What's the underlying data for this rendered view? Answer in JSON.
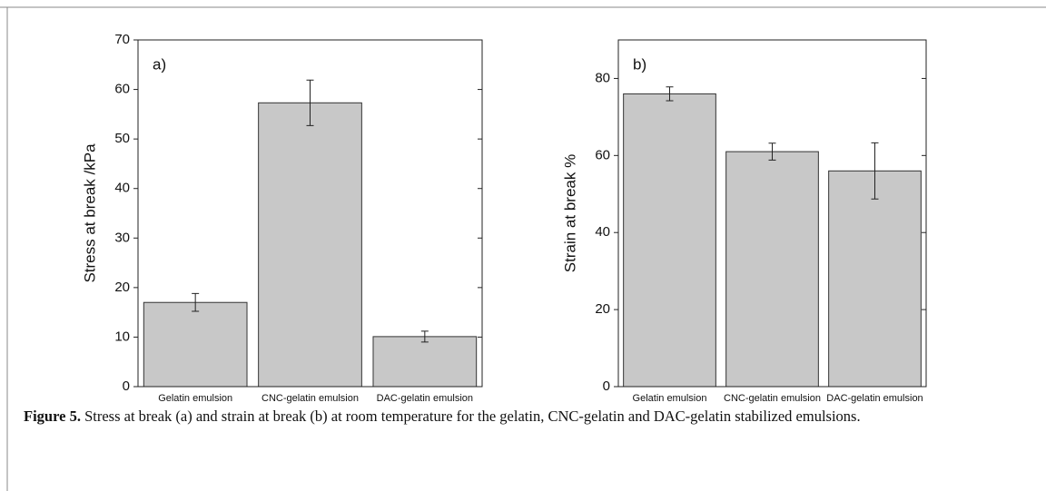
{
  "chart_data": [
    {
      "type": "bar",
      "panel_label": "a)",
      "ylabel": "Stress at break /kPa",
      "categories": [
        "Gelatin emulsion",
        "CNC-gelatin emulsion",
        "DAC-gelatin emulsion"
      ],
      "values": [
        17,
        57.3,
        10.1
      ],
      "errors": [
        1.8,
        4.6,
        1.1
      ],
      "color": "#c8c8c8",
      "ylim": [
        0,
        70
      ],
      "yticks": [
        0,
        10,
        20,
        30,
        40,
        50,
        60,
        70
      ]
    },
    {
      "type": "bar",
      "panel_label": "b)",
      "ylabel": "Strain at break %",
      "categories": [
        "Gelatin emulsion",
        "CNC-gelatin emulsion",
        "DAC-gelatin emulsion"
      ],
      "values": [
        76,
        61,
        56
      ],
      "errors": [
        1.8,
        2.2,
        7.3
      ],
      "color": "#c8c8c8",
      "ylim": [
        0,
        90
      ],
      "yticks": [
        0,
        20,
        40,
        60,
        80
      ]
    }
  ],
  "caption": {
    "label": "Figure 5.",
    "text": "Stress at break (a) and strain at break (b) at room temperature for the gelatin, CNC-gelatin and DAC-gelatin stabilized emulsions."
  }
}
